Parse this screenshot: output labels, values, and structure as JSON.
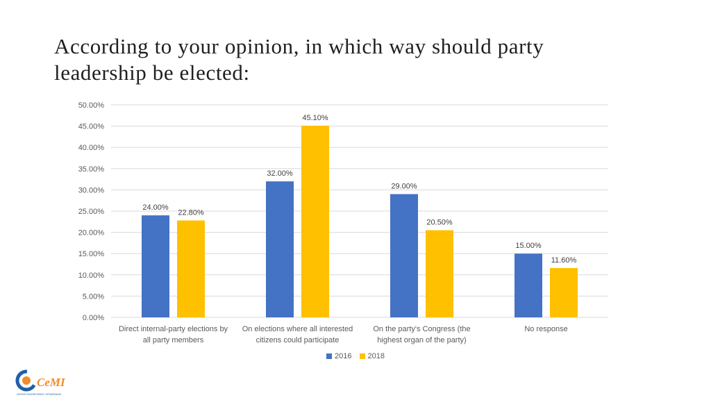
{
  "title": "According to your opinion, in which way should party leadership be elected:",
  "logo": {
    "text": "CeMI",
    "subtext": "CENTAR ZA MONITORING I ISTRAŽIVANJE"
  },
  "colors": {
    "s2016": "#4472C4",
    "s2018": "#FFC000",
    "grid": "#D9D9D9",
    "logo_blue": "#1F5FA8",
    "logo_orange": "#F28C28"
  },
  "chart_data": {
    "type": "bar",
    "categories": [
      [
        "Direct internal-party elections by",
        "all party members"
      ],
      [
        "On elections where all interested",
        "citizens could participate"
      ],
      [
        "On the party's Congress (the",
        "highest organ of the party)"
      ],
      [
        "No response"
      ]
    ],
    "series": [
      {
        "name": "2016",
        "values": [
          24.0,
          32.0,
          29.0,
          15.0
        ],
        "labels": [
          "24.00%",
          "32.00%",
          "29.00%",
          "15.00%"
        ]
      },
      {
        "name": "2018",
        "values": [
          22.8,
          45.1,
          20.5,
          11.6
        ],
        "labels": [
          "22.80%",
          "45.10%",
          "20.50%",
          "11.60%"
        ]
      }
    ],
    "yticks": [
      "0.00%",
      "5.00%",
      "10.00%",
      "15.00%",
      "20.00%",
      "25.00%",
      "30.00%",
      "35.00%",
      "40.00%",
      "45.00%",
      "50.00%"
    ],
    "ylim": [
      0,
      50
    ],
    "grid": true,
    "legend": "bottom"
  }
}
